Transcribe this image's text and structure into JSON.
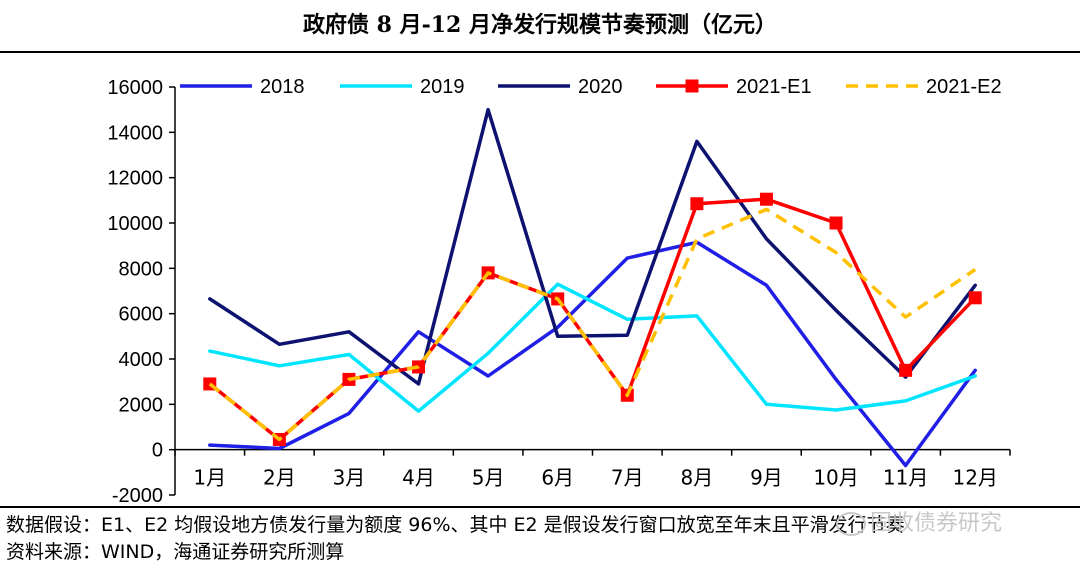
{
  "title": "政府债 8 月-12 月净发行规模节奏预测（亿元）",
  "footnotes": {
    "assumption": "数据假设：E1、E2 均假设地方债发行量为额度 96%、其中 E2 是假设发行窗口放宽至年末且平滑发行节奏",
    "source": "资料来源：WIND，海通证券研究所测算"
  },
  "watermark": "固收债券研究",
  "chart_data": {
    "type": "line",
    "title": "政府债 8 月-12 月净发行规模节奏预测（亿元）",
    "categories": [
      "1月",
      "2月",
      "3月",
      "4月",
      "5月",
      "6月",
      "7月",
      "8月",
      "9月",
      "10月",
      "11月",
      "12月"
    ],
    "y_ticks": [
      "16000",
      "14000",
      "12000",
      "10000",
      "8000",
      "6000",
      "4000",
      "2000",
      "0",
      "-2000"
    ],
    "ylim": [
      -2000,
      16000
    ],
    "legend_position": "top",
    "grid": false,
    "series": [
      {
        "name": "2018",
        "color": "#1f1fe6",
        "style": "solid",
        "marker": false,
        "values": [
          200,
          50,
          1600,
          5200,
          3250,
          5400,
          8450,
          9150,
          7250,
          3100,
          -700,
          3500
        ]
      },
      {
        "name": "2019",
        "color": "#00e5ff",
        "style": "solid",
        "marker": false,
        "values": [
          4350,
          3700,
          4200,
          1700,
          4250,
          7300,
          5750,
          5900,
          2000,
          1750,
          2150,
          3250
        ]
      },
      {
        "name": "2020",
        "color": "#0d1270",
        "style": "solid",
        "marker": false,
        "values": [
          6650,
          4650,
          5200,
          2900,
          15000,
          5000,
          5050,
          13600,
          9300,
          6150,
          3200,
          7250
        ]
      },
      {
        "name": "2021-E1",
        "color": "#ff0000",
        "style": "solid",
        "marker": true,
        "values": [
          2900,
          450,
          3100,
          3650,
          7800,
          6650,
          2400,
          10850,
          11050,
          10000,
          3500,
          6700
        ]
      },
      {
        "name": "2021-E2",
        "color": "#ffc000",
        "style": "dashed",
        "marker": false,
        "values": [
          2900,
          450,
          3100,
          3650,
          7800,
          6650,
          2400,
          9300,
          10600,
          8700,
          5850,
          7950
        ]
      }
    ]
  }
}
